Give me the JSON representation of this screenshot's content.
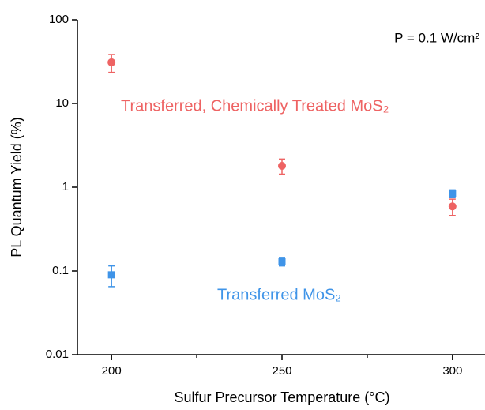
{
  "chart_data": {
    "type": "scatter",
    "x": [
      200,
      250,
      300
    ],
    "series": [
      {
        "color": "#ee6363",
        "marker": "circle",
        "values": [
          31,
          1.8,
          0.59
        ],
        "errors": [
          7.5,
          0.37,
          0.13
        ]
      },
      {
        "color": "#3f94e8",
        "marker": "square",
        "values": [
          0.09,
          0.13,
          0.84
        ],
        "errors": [
          0.025,
          0.015,
          0.09
        ]
      }
    ],
    "xlim": [
      190,
      310
    ],
    "xticks": [
      200,
      250,
      300
    ],
    "xminorticks": [
      225,
      275
    ],
    "ylim": [
      0.01,
      100
    ],
    "yticks": [
      0.01,
      0.1,
      1,
      10,
      100
    ],
    "ylog": true,
    "xlabel": "Sulfur Precursor Temperature (°C)",
    "ylabel": "PL Quantum Yield (%)",
    "annotations": [
      {
        "text": "P = 0.1 W/cm²",
        "color": "#000000"
      },
      {
        "text": "Transferred, Chemically Treated MoS₂",
        "color": "#ee6363"
      },
      {
        "text": "Transferred MoS₂",
        "color": "#3f94e8"
      }
    ]
  }
}
